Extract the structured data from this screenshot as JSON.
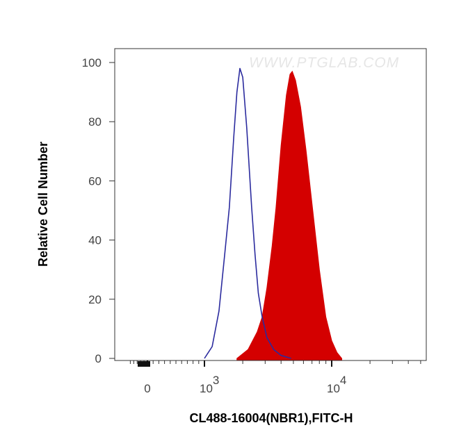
{
  "chart_data": {
    "type": "area",
    "title": "",
    "xlabel": "CL488-16004(NBR1),FITC-H",
    "ylabel": "Relative Cell Number",
    "x_scale": "biexponential (log above 1000)",
    "xlim": [
      -300,
      55000
    ],
    "ylim": [
      0,
      100
    ],
    "x_ticks": [
      {
        "value": 0,
        "label": "0",
        "sup": ""
      },
      {
        "value": 1000,
        "label": "10",
        "sup": "3"
      },
      {
        "value": 10000,
        "label": "10",
        "sup": "4"
      }
    ],
    "y_ticks": [
      {
        "value": 0,
        "label": "0"
      },
      {
        "value": 20,
        "label": "20"
      },
      {
        "value": 40,
        "label": "40"
      },
      {
        "value": 60,
        "label": "60"
      },
      {
        "value": 80,
        "label": "80"
      },
      {
        "value": 100,
        "label": "100"
      }
    ],
    "grid": false,
    "legend": "none",
    "watermark": "WWW.PTGLAB.COM",
    "series": [
      {
        "style": "outline",
        "color": "#2b2b9e",
        "x": [
          1000,
          1150,
          1300,
          1450,
          1570,
          1700,
          1800,
          1900,
          2000,
          2150,
          2350,
          2500,
          2650,
          2840,
          3100,
          3500,
          4000,
          4800
        ],
        "y": [
          0,
          4,
          16,
          36,
          51,
          75,
          90,
          98,
          95,
          78,
          51,
          35,
          22,
          14,
          7,
          3,
          1,
          0
        ]
      },
      {
        "style": "filled",
        "color": "#d40000",
        "x": [
          1800,
          2200,
          2600,
          2840,
          3100,
          3400,
          3650,
          4000,
          4400,
          4700,
          4900,
          5200,
          5700,
          6300,
          7100,
          8000,
          9000,
          10000,
          11000,
          12000
        ],
        "y": [
          0,
          3,
          9,
          14,
          24,
          38,
          51,
          72,
          89,
          96,
          97,
          94,
          85,
          70,
          50,
          30,
          14,
          6,
          2,
          0
        ]
      }
    ]
  }
}
